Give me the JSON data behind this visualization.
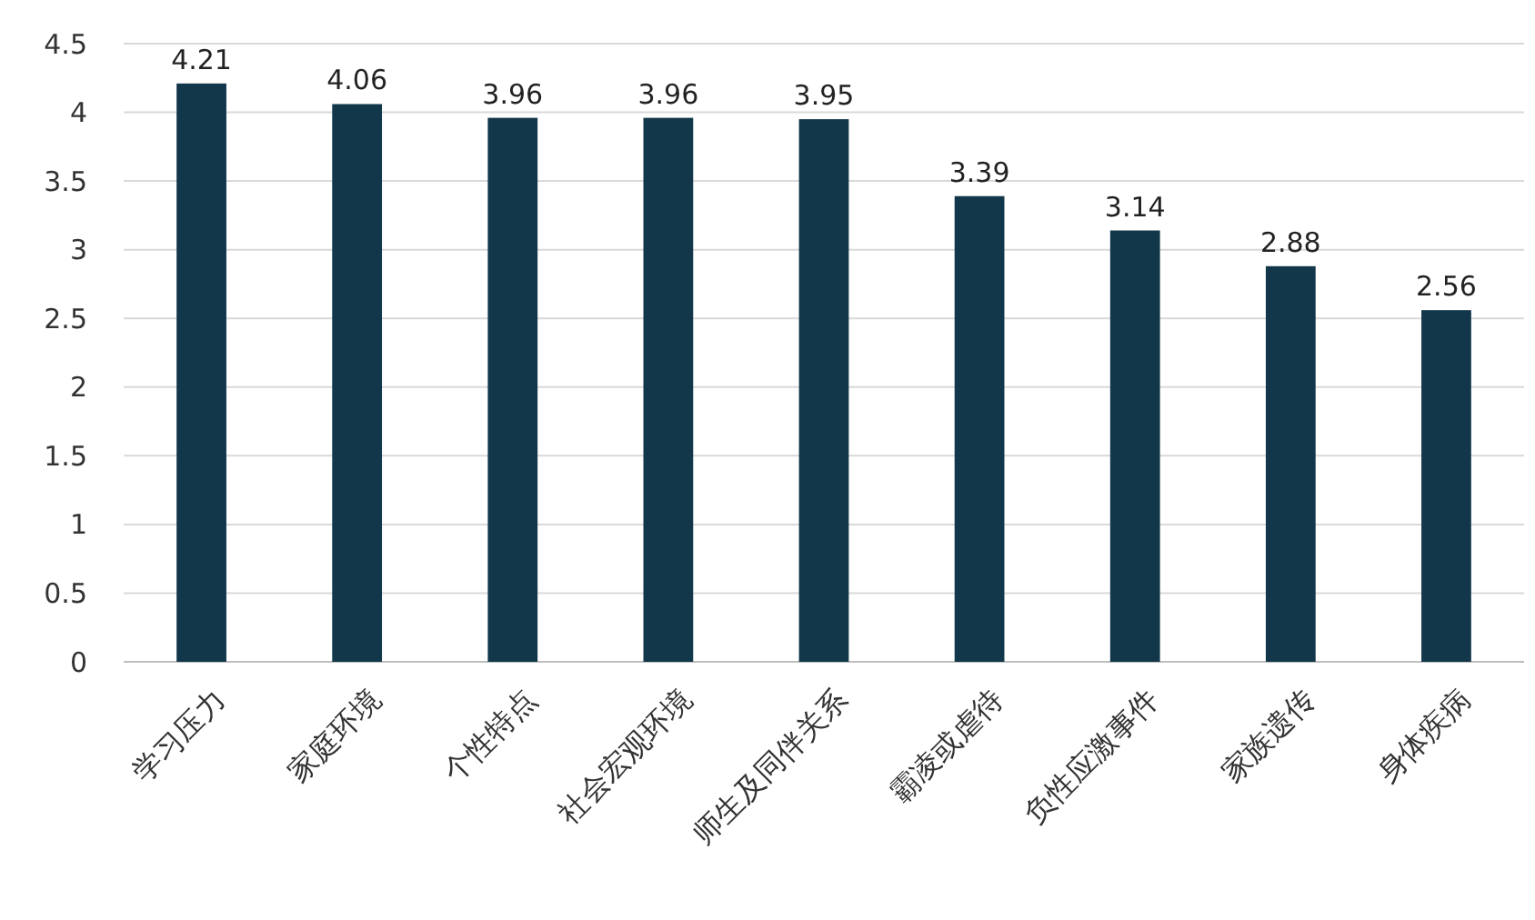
{
  "chart_data": {
    "type": "bar",
    "categories": [
      "学习压力",
      "家庭环境",
      "个性特点",
      "社会宏观环境",
      "师生及同伴关系",
      "霸凌或虐待",
      "负性应激事件",
      "家族遗传",
      "身体疾病"
    ],
    "values": [
      4.21,
      4.06,
      3.96,
      3.96,
      3.95,
      3.39,
      3.14,
      2.88,
      2.56
    ],
    "color": "#12374a",
    "ylim": [
      0,
      4.5
    ],
    "yticks": [
      0,
      0.5,
      1,
      1.5,
      2,
      2.5,
      3,
      3.5,
      4,
      4.5
    ],
    "grid": "y",
    "data_labels": true
  }
}
